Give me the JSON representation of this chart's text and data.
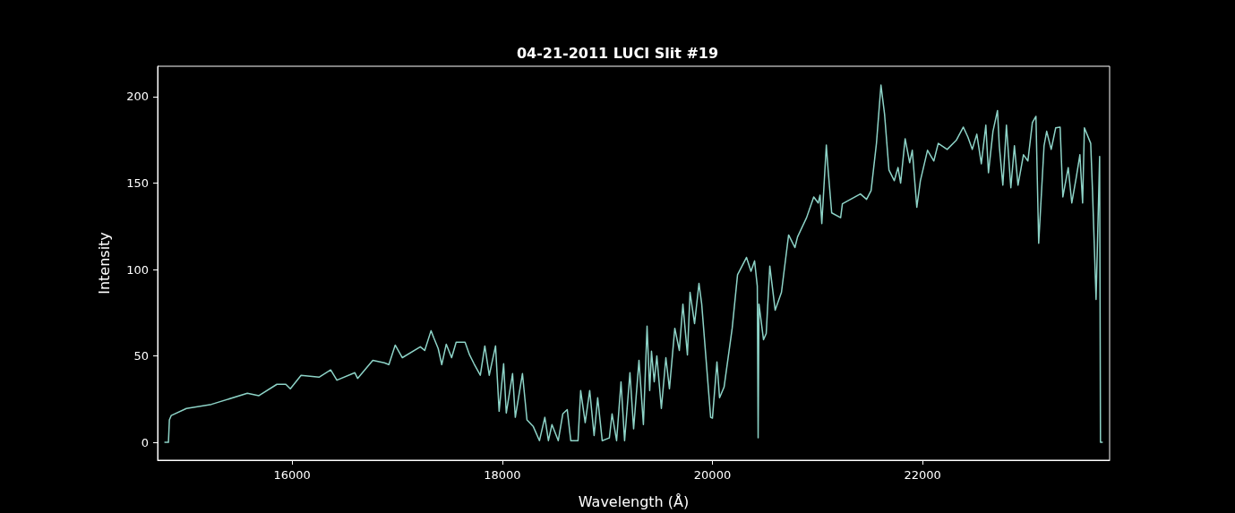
{
  "chart_data": {
    "type": "line",
    "title": "04-21-2011 LUCI Slit #19",
    "xlabel": "Wavelength (Å)",
    "ylabel": "Intensity",
    "xlim": [
      14720,
      23780
    ],
    "ylim": [
      -10.3,
      217.6
    ],
    "xticks": [
      16000,
      18000,
      20000,
      22000
    ],
    "yticks": [
      0,
      50,
      100,
      150,
      200
    ],
    "grid": false,
    "marker": "none",
    "line_style": "solid",
    "x": [
      14789,
      14823,
      14832,
      14849,
      14994,
      15232,
      15574,
      15684,
      15855,
      15940,
      15983,
      16085,
      16256,
      16367,
      16426,
      16597,
      16623,
      16768,
      16878,
      16921,
      16981,
      17049,
      17220,
      17262,
      17322,
      17348,
      17390,
      17424,
      17467,
      17518,
      17561,
      17646,
      17689,
      17731,
      17791,
      17834,
      17876,
      17936,
      17970,
      18013,
      18038,
      18098,
      18124,
      18192,
      18235,
      18294,
      18354,
      18405,
      18439,
      18473,
      18533,
      18576,
      18618,
      18652,
      18721,
      18746,
      18789,
      18832,
      18874,
      18908,
      18951,
      19019,
      19045,
      19088,
      19130,
      19164,
      19215,
      19250,
      19301,
      19343,
      19378,
      19403,
      19420,
      19446,
      19471,
      19514,
      19557,
      19591,
      19642,
      19685,
      19719,
      19762,
      19787,
      19830,
      19872,
      19898,
      19983,
      20000,
      20043,
      20068,
      20111,
      20188,
      20239,
      20324,
      20367,
      20401,
      20427,
      20435,
      20443,
      20486,
      20512,
      20546,
      20597,
      20657,
      20725,
      20785,
      20810,
      20896,
      20964,
      21007,
      21024,
      21041,
      21084,
      21101,
      21135,
      21220,
      21237,
      21408,
      21467,
      21510,
      21561,
      21604,
      21638,
      21680,
      21731,
      21766,
      21791,
      21834,
      21877,
      21902,
      21945,
      21979,
      22047,
      22107,
      22149,
      22234,
      22320,
      22388,
      22431,
      22473,
      22516,
      22559,
      22602,
      22627,
      22670,
      22713,
      22730,
      22764,
      22798,
      22840,
      22874,
      22908,
      22960,
      23002,
      23045,
      23079,
      23105,
      23156,
      23181,
      23224,
      23267,
      23309,
      23335,
      23386,
      23420,
      23463,
      23497,
      23523,
      23540,
      23600,
      23617,
      23651,
      23685,
      23693,
      23710
    ],
    "series": [
      {
        "color": "#8dd3c7",
        "values": [
          0,
          0,
          13,
          15.5,
          19.6,
          22,
          28.4,
          27,
          33.6,
          33.6,
          31,
          38.8,
          37.7,
          41.9,
          36,
          40.3,
          37,
          47.5,
          46,
          45,
          56.3,
          49,
          55.3,
          53.2,
          64.6,
          60.5,
          54.3,
          45,
          56.8,
          49,
          57.9,
          57.9,
          50.6,
          45.5,
          38.8,
          55.8,
          38.8,
          55.8,
          18,
          45.5,
          17,
          39.8,
          14.5,
          39.8,
          13,
          9.3,
          1,
          14.5,
          1,
          10.3,
          1,
          16.5,
          19,
          1,
          1,
          30,
          11.4,
          30,
          4,
          25.8,
          1,
          2.6,
          16.5,
          1,
          35,
          1,
          40.3,
          7.8,
          47.5,
          10.3,
          67.2,
          30,
          52.7,
          35,
          50,
          19.6,
          49,
          31,
          66,
          53.2,
          80,
          50.6,
          86.8,
          68.7,
          92,
          80,
          14.5,
          14,
          46.5,
          25.8,
          32,
          66,
          97,
          107,
          99,
          105,
          90.4,
          2.6,
          80,
          59.4,
          63,
          102,
          76.5,
          86.8,
          120,
          112.7,
          118.9,
          130,
          142,
          138.5,
          143,
          126.6,
          172,
          157.6,
          132.8,
          130,
          138,
          143.7,
          140.6,
          145.7,
          173,
          206.7,
          190,
          157.6,
          151.4,
          159,
          150,
          175.7,
          161.8,
          169,
          136,
          151.4,
          169,
          162.8,
          173,
          169.5,
          174.7,
          182.4,
          176.7,
          169.5,
          178.3,
          161.2,
          183.5,
          156,
          180,
          192,
          171.6,
          148.8,
          183.5,
          147.3,
          171.6,
          148.8,
          166.4,
          162.8,
          185,
          188.6,
          115.2,
          171.6,
          180,
          169.5,
          182,
          182.4,
          142,
          159,
          138.5,
          153.5,
          166.4,
          138.5,
          182,
          173,
          145.7,
          82.7,
          165.4,
          0,
          0
        ]
      }
    ]
  }
}
